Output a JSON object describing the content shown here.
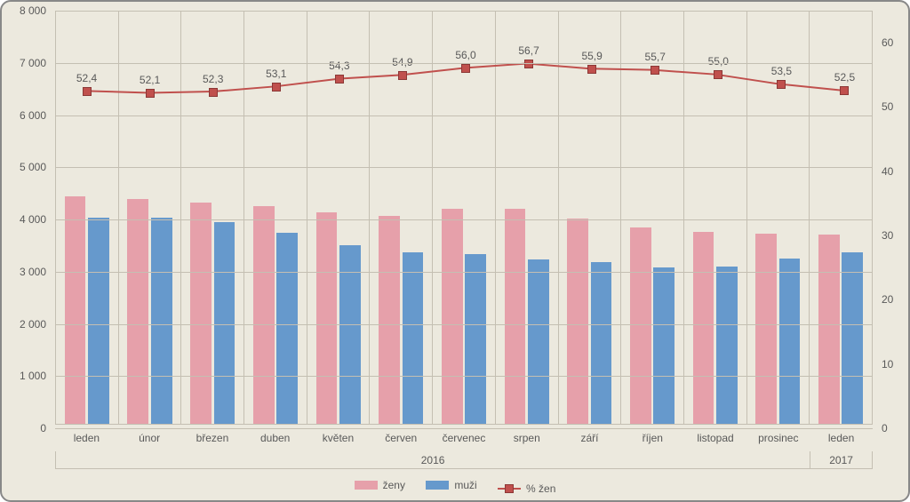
{
  "chart": {
    "type": "bar+line",
    "background_color": "#ece9de",
    "border_color": "#888888",
    "grid_color": "#c4bfb2",
    "text_color": "#595959",
    "categories": [
      "leden",
      "únor",
      "březen",
      "duben",
      "květen",
      "červen",
      "červenec",
      "srpen",
      "září",
      "říjen",
      "listopad",
      "prosinec",
      "leden"
    ],
    "year_groups": [
      {
        "label": "2016",
        "span": 12
      },
      {
        "label": "2017",
        "span": 1
      }
    ],
    "y_left": {
      "min": 0,
      "max": 8000,
      "step": 1000
    },
    "y_right": {
      "min": 0,
      "max": 65,
      "step": 10
    },
    "series": {
      "women": {
        "label": "ženy",
        "color": "#e6a0aa",
        "values": [
          4400,
          4350,
          4280,
          4220,
          4100,
          4030,
          4170,
          4160,
          3980,
          3800,
          3710,
          3680,
          3660
        ]
      },
      "men": {
        "label": "muži",
        "color": "#6699cc",
        "values": [
          4000,
          4000,
          3900,
          3700,
          3450,
          3320,
          3280,
          3180,
          3140,
          3020,
          3040,
          3200,
          3320
        ]
      },
      "pct_women": {
        "label": "% žen",
        "color": "#c0504d",
        "values": [
          52.4,
          52.1,
          52.3,
          53.1,
          54.3,
          54.9,
          56.0,
          56.7,
          55.9,
          55.7,
          55.0,
          53.5,
          52.5
        ]
      }
    },
    "y_left_ticks": [
      "0",
      "1 000",
      "2 000",
      "3 000",
      "4 000",
      "5 000",
      "6 000",
      "7 000",
      "8 000"
    ],
    "y_right_ticks": [
      "0",
      "10",
      "20",
      "30",
      "40",
      "50",
      "60"
    ],
    "label_fontsize": 12
  }
}
